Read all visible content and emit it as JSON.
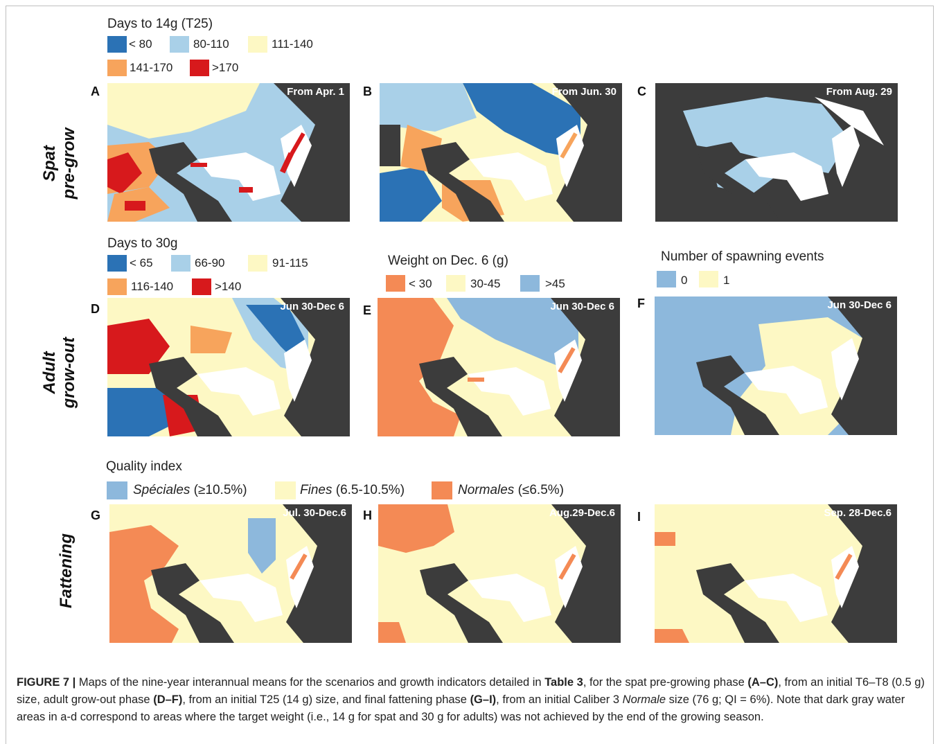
{
  "figure": {
    "legends": {
      "days14": {
        "title": "Days to 14g (T25)",
        "items": [
          {
            "label": "< 80",
            "color": "#2b72b5"
          },
          {
            "label": "80-110",
            "color": "#a9d0e8"
          },
          {
            "label": "111-140",
            "color": "#fdf8c4"
          },
          {
            "label": "141-170",
            "color": "#f7a45c"
          },
          {
            "label": ">170",
            "color": "#d7191c"
          }
        ]
      },
      "days30": {
        "title": "Days to 30g",
        "items": [
          {
            "label": "< 65",
            "color": "#2b72b5"
          },
          {
            "label": "66-90",
            "color": "#a9d0e8"
          },
          {
            "label": "91-115",
            "color": "#fdf8c4"
          },
          {
            "label": "116-140",
            "color": "#f7a45c"
          },
          {
            "label": ">140",
            "color": "#d7191c"
          }
        ]
      },
      "weight": {
        "title": "Weight on Dec. 6 (g)",
        "items": [
          {
            "label": "< 30",
            "color": "#f48a55"
          },
          {
            "label": "30-45",
            "color": "#fdf8c4"
          },
          {
            "label": ">45",
            "color": "#8db8dc"
          }
        ]
      },
      "spawning": {
        "title": "Number of spawning events",
        "items": [
          {
            "label": "0",
            "color": "#8db8dc"
          },
          {
            "label": "1",
            "color": "#fdf8c4"
          }
        ]
      },
      "quality": {
        "title": "Quality index",
        "items": [
          {
            "name": "Spéciales",
            "range": " (≥10.5%)",
            "color": "#8db8dc"
          },
          {
            "name": "Fines",
            "range": " (6.5-10.5%)",
            "color": "#fdf8c4"
          },
          {
            "name": "Normales",
            "range": " (≤6.5%)",
            "color": "#f48a55"
          }
        ]
      }
    },
    "row_labels": {
      "spat_line1": "Spat",
      "spat_line2": "pre-grow",
      "adult_line1": "Adult",
      "adult_line2": "grow-out",
      "fattening": "Fattening"
    },
    "panels": [
      {
        "letter": "A",
        "label": "From Apr. 1"
      },
      {
        "letter": "B",
        "label": "From Jun. 30"
      },
      {
        "letter": "C",
        "label": "From Aug. 29"
      },
      {
        "letter": "D",
        "label": "Jun 30-Dec 6"
      },
      {
        "letter": "E",
        "label": "Jun 30-Dec 6"
      },
      {
        "letter": "F",
        "label": "Jun 30-Dec 6"
      },
      {
        "letter": "G",
        "label": "Jul. 30-Dec.6"
      },
      {
        "letter": "H",
        "label": "Aug.29-Dec.6"
      },
      {
        "letter": "I",
        "label": "Sep. 28-Dec.6"
      }
    ],
    "caption": {
      "fig_label": "FIGURE 7 |",
      "t1": " Maps of the nine-year interannual means for the scenarios and growth indicators detailed in ",
      "b1": "Table 3",
      "t2": ", for the spat pre-growing phase ",
      "b2": "(A–C)",
      "t3": ", from an initial T6–T8 (0.5 g) size, adult grow-out phase ",
      "b3": "(D–F)",
      "t4": ", from an initial T25 (14 g) size, and final fattening phase ",
      "b4": "(G–I)",
      "t5": ", from an initial Caliber 3 ",
      "i1": "Normale",
      "t6": " size (76 g; QI = 6%). Note that dark gray water areas in a-d correspond to areas where the target weight (i.e., 14 g for spat and 30 g for adults) was not achieved by the end of the growing season."
    },
    "colors": {
      "land": "#3c3c3c",
      "coast": "#ffffff"
    }
  }
}
